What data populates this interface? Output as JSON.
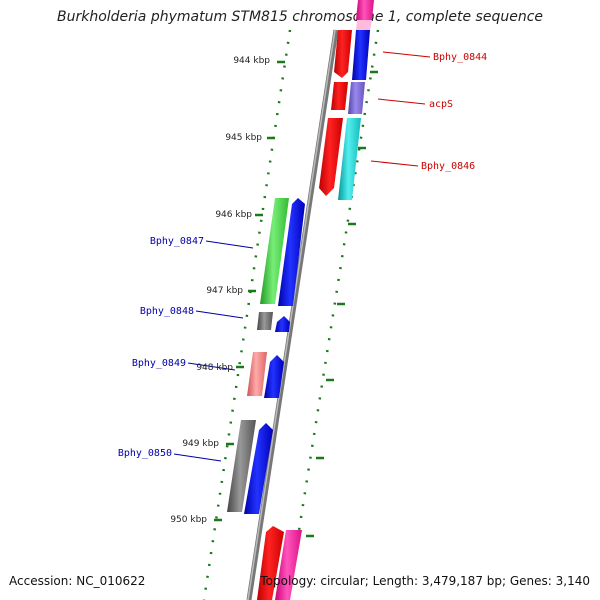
{
  "title": "Burkholderia phymatum STM815 chromosome 1, complete sequence",
  "footer": {
    "accession": "Accession: NC_010622",
    "summary": "Topology: circular; Length: 3,479,187 bp; Genes: 3,140"
  },
  "scale_labels": [
    "944 kbp",
    "945 kbp",
    "946 kbp",
    "947 kbp",
    "948 kbp",
    "949 kbp",
    "950 kbp"
  ],
  "gene_labels": {
    "right": [
      "Bphy_0844",
      "acpS",
      "Bphy_0846"
    ],
    "left": [
      "Bphy_0847",
      "Bphy_0848",
      "Bphy_0849",
      "Bphy_0850"
    ]
  },
  "colors": {
    "backbone": "#8a8a8a",
    "ticks": "#1a7a1a",
    "label_right": "#cc0000",
    "label_left": "#0000aa",
    "red": "#ee0000",
    "blue": "#0000ee",
    "magenta": "#ee1199",
    "purple": "#7766cc",
    "cyan": "#11cccc",
    "green": "#33cc33",
    "gray": "#666666",
    "salmon": "#ee7777"
  }
}
